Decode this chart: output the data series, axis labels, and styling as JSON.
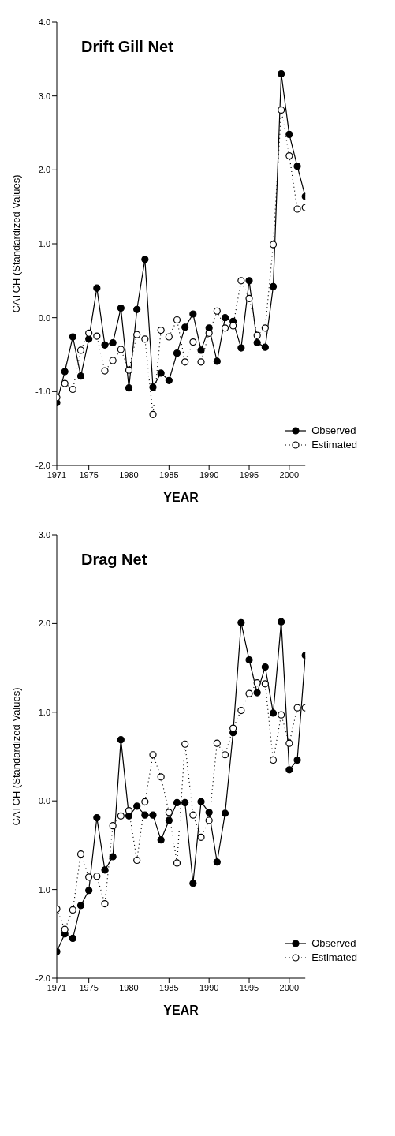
{
  "chart_data": [
    {
      "type": "line",
      "title": "Drift Gill Net",
      "xlabel": "YEAR",
      "ylabel": "CATCH (Standardized Values)",
      "x": [
        1971,
        1972,
        1973,
        1974,
        1975,
        1976,
        1977,
        1978,
        1979,
        1980,
        1981,
        1982,
        1983,
        1984,
        1985,
        1986,
        1987,
        1988,
        1989,
        1990,
        1991,
        1992,
        1993,
        1994,
        1995,
        1996,
        1997,
        1998,
        1999,
        2000,
        2001,
        2002
      ],
      "series": [
        {
          "name": "Observed",
          "color": "#000000",
          "marker": "circle",
          "line_style": "solid",
          "values": [
            -1.15,
            -0.73,
            -0.26,
            -0.79,
            -0.29,
            0.4,
            -0.37,
            -0.34,
            0.13,
            -0.95,
            0.11,
            0.79,
            -0.94,
            -0.75,
            -0.85,
            -0.48,
            -0.13,
            0.05,
            -0.44,
            -0.14,
            -0.59,
            0.0,
            -0.05,
            -0.41,
            0.5,
            -0.34,
            -0.4,
            0.42,
            3.3,
            2.48,
            2.05,
            1.64
          ]
        },
        {
          "name": "Estimated",
          "color": "#000000",
          "marker": "circle",
          "line_style": "dotted",
          "values": [
            -1.08,
            -0.89,
            -0.97,
            -0.44,
            -0.21,
            -0.25,
            -0.72,
            -0.58,
            -0.43,
            -0.71,
            -0.23,
            -0.29,
            -1.31,
            -0.17,
            -0.26,
            -0.03,
            -0.6,
            -0.33,
            -0.6,
            -0.21,
            0.09,
            -0.14,
            -0.11,
            0.5,
            0.26,
            -0.24,
            -0.14,
            0.99,
            2.81,
            2.19,
            1.47,
            1.49
          ]
        }
      ],
      "xlim": [
        1971,
        2002
      ],
      "xticks": [
        1971,
        1975,
        1980,
        1985,
        1990,
        1995,
        2000
      ],
      "ylim": [
        -2,
        4
      ],
      "yticks": [
        {
          "value": -2,
          "label": "-2.0"
        },
        {
          "value": -1,
          "label": "-1.0"
        },
        {
          "value": 0,
          "label": "0.0"
        },
        {
          "value": 1,
          "label": "1.0"
        },
        {
          "value": 2,
          "label": "2.0"
        },
        {
          "value": 3,
          "label": "3.0"
        },
        {
          "value": 4,
          "label": "4.0"
        }
      ],
      "legend": "bottom right"
    },
    {
      "type": "line",
      "title": "Drag Net",
      "xlabel": "YEAR",
      "ylabel": "CATCH (Standardized Values)",
      "x": [
        1971,
        1972,
        1973,
        1974,
        1975,
        1976,
        1977,
        1978,
        1979,
        1980,
        1981,
        1982,
        1983,
        1984,
        1985,
        1986,
        1987,
        1988,
        1989,
        1990,
        1991,
        1992,
        1993,
        1994,
        1995,
        1996,
        1997,
        1998,
        1999,
        2000,
        2001,
        2002
      ],
      "series": [
        {
          "name": "Observed",
          "color": "#000000",
          "marker": "circle",
          "line_style": "solid",
          "values": [
            -1.7,
            -1.5,
            -1.55,
            -1.18,
            -1.01,
            -0.19,
            -0.78,
            -0.63,
            0.69,
            -0.17,
            -0.06,
            -0.16,
            -0.16,
            -0.44,
            -0.22,
            -0.02,
            -0.02,
            -0.93,
            -0.01,
            -0.13,
            -0.69,
            -0.14,
            0.77,
            2.01,
            1.59,
            1.22,
            1.51,
            0.99,
            2.02,
            0.35,
            0.46,
            1.64
          ]
        },
        {
          "name": "Estimated",
          "color": "#000000",
          "marker": "circle",
          "line_style": "dotted",
          "values": [
            -1.22,
            -1.45,
            -1.23,
            -0.6,
            -0.86,
            -0.85,
            -1.16,
            -0.28,
            -0.17,
            -0.11,
            -0.67,
            -0.01,
            0.52,
            0.27,
            -0.13,
            -0.7,
            0.64,
            -0.16,
            -0.41,
            -0.22,
            0.65,
            0.52,
            0.82,
            1.02,
            1.21,
            1.33,
            1.32,
            0.46,
            0.97,
            0.65,
            1.05,
            1.05
          ]
        }
      ],
      "xlim": [
        1971,
        2002
      ],
      "xticks": [
        1971,
        1975,
        1980,
        1985,
        1990,
        1995,
        2000
      ],
      "ylim": [
        -2,
        3
      ],
      "yticks": [
        {
          "value": -2,
          "label": "-2.0"
        },
        {
          "value": -1,
          "label": "-1.0"
        },
        {
          "value": 0,
          "label": "0.0"
        },
        {
          "value": 1,
          "label": "1.0"
        },
        {
          "value": 2,
          "label": "2.0"
        },
        {
          "value": 3,
          "label": "3.0"
        }
      ],
      "legend": "bottom right"
    }
  ]
}
